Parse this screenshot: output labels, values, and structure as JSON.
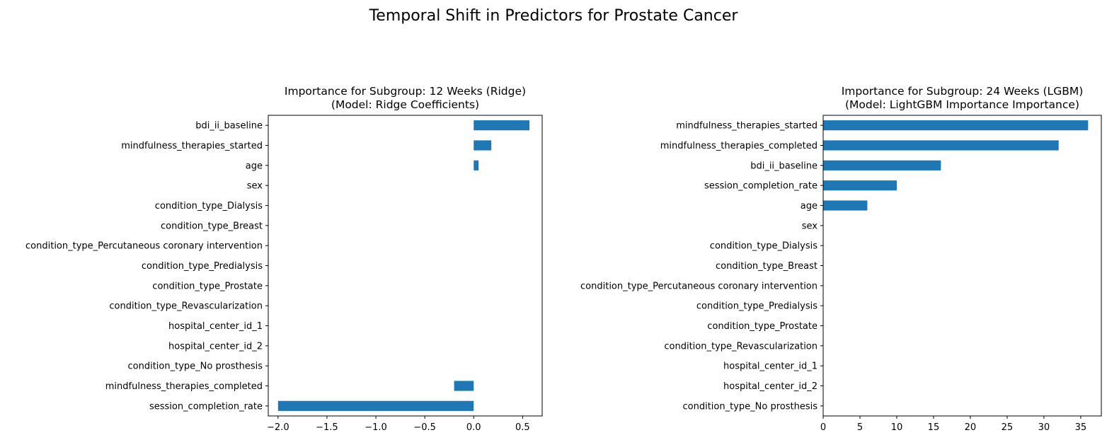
{
  "figure": {
    "suptitle": "Temporal Shift in Predictors for Prostate Cancer"
  },
  "chart_data": [
    {
      "type": "bar",
      "orientation": "horizontal",
      "title": "Importance for Subgroup: 12 Weeks (Ridge)",
      "subtitle": "(Model: Ridge Coefficients)",
      "xlabel": "",
      "ylabel": "",
      "xlim": [
        -2.1,
        0.7
      ],
      "xticks": [
        -2.0,
        -1.5,
        -1.0,
        -0.5,
        0.0,
        0.5
      ],
      "xtick_labels": [
        "−2.0",
        "−1.5",
        "−1.0",
        "−0.5",
        "0.0",
        "0.5"
      ],
      "categories": [
        "bdi_ii_baseline",
        "mindfulness_therapies_started",
        "age",
        "sex",
        "condition_type_Dialysis",
        "condition_type_Breast",
        "condition_type_Percutaneous coronary intervention",
        "condition_type_Predialysis",
        "condition_type_Prostate",
        "condition_type_Revascularization",
        "hospital_center_id_1",
        "hospital_center_id_2",
        "condition_type_No prosthesis",
        "mindfulness_therapies_completed",
        "session_completion_rate"
      ],
      "values": [
        0.57,
        0.18,
        0.05,
        0,
        0,
        0,
        0,
        0,
        0,
        0,
        0,
        0,
        0,
        -0.2,
        -2.0
      ],
      "color": "#1f77b4",
      "grid": false,
      "legend": false
    },
    {
      "type": "bar",
      "orientation": "horizontal",
      "title": "Importance for Subgroup: 24 Weeks (LGBM)",
      "subtitle": "(Model: LightGBM Importance Importance)",
      "xlabel": "",
      "ylabel": "",
      "xlim": [
        0,
        37.8
      ],
      "xticks": [
        0,
        5,
        10,
        15,
        20,
        25,
        30,
        35
      ],
      "xtick_labels": [
        "0",
        "5",
        "10",
        "15",
        "20",
        "25",
        "30",
        "35"
      ],
      "categories": [
        "mindfulness_therapies_started",
        "mindfulness_therapies_completed",
        "bdi_ii_baseline",
        "session_completion_rate",
        "age",
        "sex",
        "condition_type_Dialysis",
        "condition_type_Breast",
        "condition_type_Percutaneous coronary intervention",
        "condition_type_Predialysis",
        "condition_type_Prostate",
        "condition_type_Revascularization",
        "hospital_center_id_1",
        "hospital_center_id_2",
        "condition_type_No prosthesis"
      ],
      "values": [
        36,
        32,
        16,
        10,
        6,
        0,
        0,
        0,
        0,
        0,
        0,
        0,
        0,
        0,
        0
      ],
      "color": "#1f77b4",
      "grid": false,
      "legend": false
    }
  ]
}
